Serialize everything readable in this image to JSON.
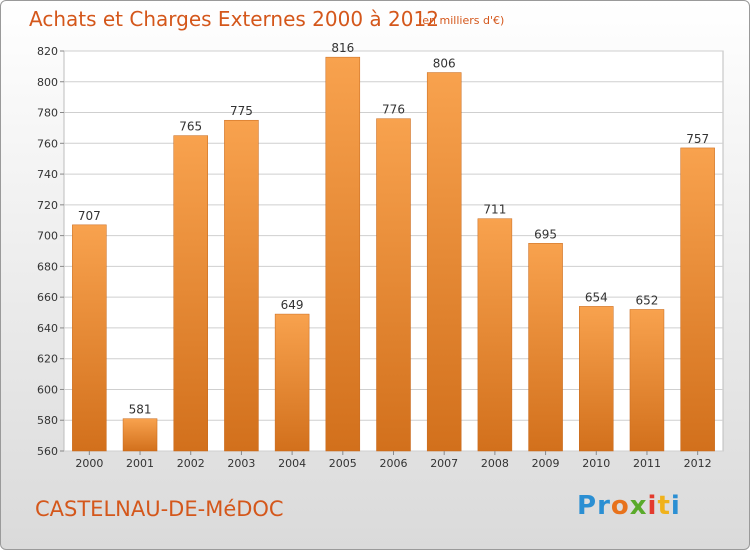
{
  "header": {
    "title": "Achats et Charges Externes 2000 à 2012",
    "subtitle": "(en milliers d'€)"
  },
  "footer": {
    "city": "CASTELNAU-DE-MéDOC",
    "logo": {
      "text": "Proxiti",
      "letters": [
        {
          "ch": "P",
          "color": "#2b8fd3"
        },
        {
          "ch": "r",
          "color": "#2b8fd3"
        },
        {
          "ch": "o",
          "color": "#e8721c"
        },
        {
          "ch": "x",
          "color": "#5aaa2a"
        },
        {
          "ch": "i",
          "color": "#e33a2d"
        },
        {
          "ch": "t",
          "color": "#f0b21b"
        },
        {
          "ch": "i",
          "color": "#2b8fd3"
        }
      ]
    }
  },
  "colors": {
    "accent": "#d4571b",
    "bar_top": "#f8a24e",
    "bar_bottom": "#d2701c",
    "grid": "#cfcfcf",
    "axis_text": "#333333"
  },
  "chart_data": {
    "type": "bar",
    "categories": [
      "2000",
      "2001",
      "2002",
      "2003",
      "2004",
      "2005",
      "2006",
      "2007",
      "2008",
      "2009",
      "2010",
      "2011",
      "2012"
    ],
    "values": [
      707,
      581,
      765,
      775,
      649,
      816,
      776,
      806,
      711,
      695,
      654,
      652,
      757
    ],
    "title": "Achats et Charges Externes 2000 à 2012",
    "subtitle": "(en milliers d'€)",
    "xlabel": "",
    "ylabel": "",
    "ylim": [
      560,
      820
    ],
    "yticks": [
      560,
      580,
      600,
      620,
      640,
      660,
      680,
      700,
      720,
      740,
      760,
      780,
      800,
      820
    ],
    "grid": true,
    "data_labels": true
  }
}
